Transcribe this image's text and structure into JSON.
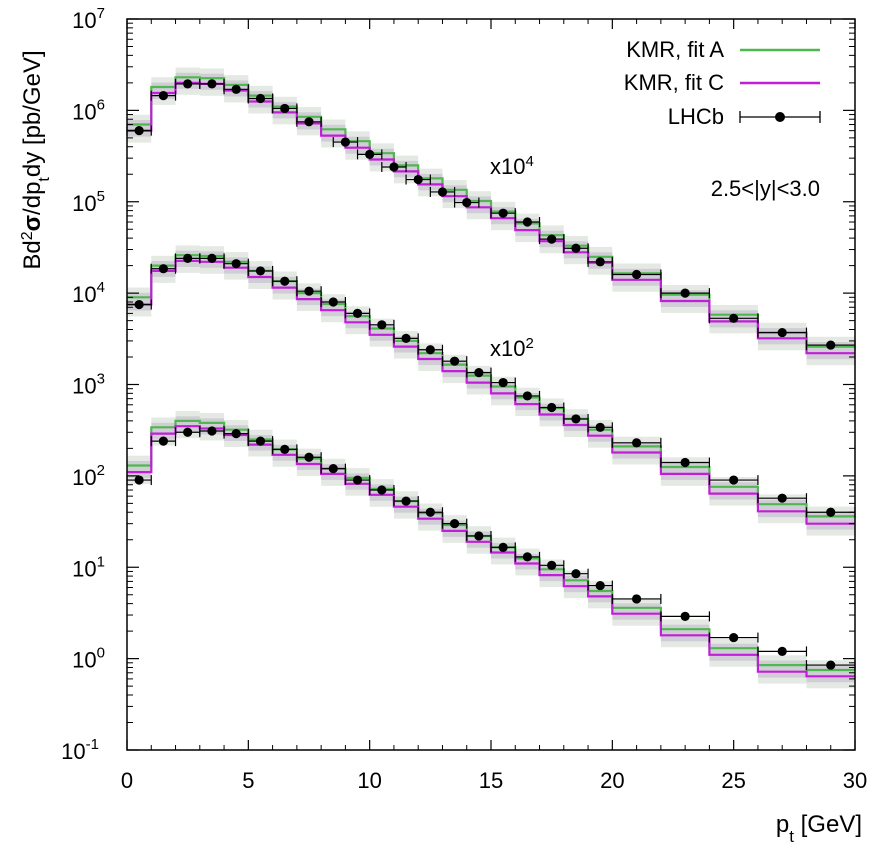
{
  "chart_data": {
    "type": "line",
    "step": true,
    "title": "",
    "xlabel": "p_t [GeV]",
    "xlabel_parts": {
      "main": "p",
      "sub": "t",
      "rest": " [GeV]"
    },
    "ylabel": "Bd²σ/dp_t dy [pb/GeV]",
    "ylabel_parts": {
      "a": "Bd",
      "sup": "2",
      "sigma": "σ",
      "b": "/dp",
      "sub": "t",
      "c": "dy [pb/GeV]"
    },
    "xlim": [
      0,
      30
    ],
    "ylim_log10": [
      -1,
      7
    ],
    "yscale": "log",
    "x_ticks": [
      "0",
      "5",
      "10",
      "15",
      "20",
      "25",
      "30"
    ],
    "y_ticks": [
      {
        "base": "10",
        "exp": "-1"
      },
      {
        "base": "10",
        "exp": "0"
      },
      {
        "base": "10",
        "exp": "1"
      },
      {
        "base": "10",
        "exp": "2"
      },
      {
        "base": "10",
        "exp": "3"
      },
      {
        "base": "10",
        "exp": "4"
      },
      {
        "base": "10",
        "exp": "5"
      },
      {
        "base": "10",
        "exp": "6"
      },
      {
        "base": "10",
        "exp": "7"
      }
    ],
    "region_label": "2.5<|y|<3.0",
    "scale_labels": [
      {
        "base": "x10",
        "exp": "4",
        "at_x": 14.8,
        "at_y": 160000
      },
      {
        "base": "x10",
        "exp": "2",
        "at_x": 14.8,
        "at_y": 1800
      }
    ],
    "legend": [
      {
        "name": "KMR, fit A",
        "color": "#4db84d",
        "kind": "line"
      },
      {
        "name": "KMR, fit C",
        "color": "#bf1fd6",
        "kind": "line"
      },
      {
        "name": "LHCb",
        "color": "#000000",
        "kind": "points"
      }
    ],
    "legend_position": "top-right",
    "bins": [
      [
        0,
        1
      ],
      [
        1,
        2
      ],
      [
        2,
        3
      ],
      [
        3,
        4
      ],
      [
        4,
        5
      ],
      [
        5,
        6
      ],
      [
        6,
        7
      ],
      [
        7,
        8
      ],
      [
        8,
        9
      ],
      [
        9,
        10
      ],
      [
        10,
        11
      ],
      [
        11,
        12
      ],
      [
        12,
        13
      ],
      [
        13,
        14
      ],
      [
        14,
        15
      ],
      [
        15,
        16
      ],
      [
        16,
        17
      ],
      [
        17,
        18
      ],
      [
        18,
        19
      ],
      [
        19,
        20
      ],
      [
        20,
        22
      ],
      [
        22,
        24
      ],
      [
        24,
        26
      ],
      [
        26,
        28
      ],
      [
        28,
        30
      ]
    ],
    "groups": [
      {
        "multiplier": 10000,
        "fitA": [
          700000,
          1800000,
          2300000,
          2250000,
          1900000,
          1450000,
          1100000,
          850000,
          620000,
          460000,
          340000,
          250000,
          180000,
          135000,
          102000,
          78000,
          58000,
          43000,
          33000,
          25000,
          16500,
          9600,
          5800,
          3700,
          2600
        ],
        "fitC": [
          600000,
          1550000,
          2000000,
          1950000,
          1650000,
          1250000,
          950000,
          720000,
          530000,
          390000,
          290000,
          215000,
          155000,
          115000,
          87000,
          66000,
          49000,
          37000,
          28000,
          21500,
          14000,
          8200,
          4900,
          3200,
          2200
        ],
        "data": [
          600000,
          1450000,
          1950000,
          1950000,
          1700000,
          1350000,
          1050000,
          750000,
          450000,
          330000,
          240000,
          175000,
          128000,
          98000,
          75000,
          60000,
          39000,
          31000,
          22000,
          16000,
          10000,
          5300,
          3700,
          2700
        ],
        "data_x": [
          0.5,
          1.5,
          2.5,
          3.5,
          4.5,
          5.5,
          6.5,
          7.5,
          9.0,
          10.0,
          11.0,
          12.0,
          13.0,
          14.0,
          15.5,
          16.5,
          17.5,
          18.5,
          19.5,
          21.0,
          23.0,
          25.0,
          27.0,
          29.0
        ]
      },
      {
        "multiplier": 100,
        "fitA": [
          9000,
          20000,
          26000,
          25500,
          22000,
          17500,
          13500,
          10000,
          7600,
          5600,
          4100,
          3000,
          2200,
          1650,
          1250,
          950,
          720,
          550,
          420,
          320,
          210,
          125,
          76,
          49,
          36
        ],
        "fitC": [
          7500,
          17500,
          22500,
          22000,
          19000,
          15000,
          11500,
          8600,
          6500,
          4800,
          3500,
          2600,
          1900,
          1400,
          1050,
          800,
          610,
          470,
          360,
          275,
          180,
          105,
          64,
          41,
          30
        ],
        "data": [
          7500,
          18500,
          24000,
          24000,
          21000,
          17500,
          13500,
          10500,
          8000,
          6000,
          4500,
          3200,
          2400,
          1800,
          1350,
          1050,
          750,
          560,
          420,
          340,
          230,
          140,
          90,
          57,
          40
        ],
        "data_x": [
          0.5,
          1.5,
          2.5,
          3.5,
          4.5,
          5.5,
          6.5,
          7.5,
          8.5,
          9.5,
          10.5,
          11.5,
          12.5,
          13.5,
          14.5,
          15.5,
          16.5,
          17.5,
          18.5,
          19.5,
          21.0,
          23.0,
          25.0,
          27.0,
          29.0
        ]
      },
      {
        "multiplier": 1,
        "fitA": [
          130,
          340,
          400,
          380,
          320,
          250,
          195,
          155,
          120,
          95,
          72,
          53,
          39,
          29,
          22,
          16.5,
          12.5,
          9.5,
          7.2,
          5.5,
          3.6,
          2.1,
          1.3,
          0.85,
          0.75
        ],
        "fitC": [
          110,
          290,
          350,
          330,
          280,
          220,
          170,
          135,
          105,
          82,
          62,
          46,
          34,
          25,
          19,
          14.5,
          11,
          8.2,
          6.2,
          4.8,
          3.1,
          1.8,
          1.1,
          0.72,
          0.64
        ],
        "data": [
          90,
          240,
          300,
          310,
          290,
          240,
          195,
          160,
          120,
          90,
          70,
          53,
          40,
          30,
          22,
          16.5,
          13,
          10.5,
          8.5,
          6.3,
          4.5,
          2.9,
          1.7,
          1.2,
          0.85
        ],
        "data_x": [
          0.5,
          1.5,
          2.5,
          3.5,
          4.5,
          5.5,
          6.5,
          7.5,
          8.5,
          9.5,
          10.5,
          11.5,
          12.5,
          13.5,
          14.5,
          15.5,
          16.5,
          17.5,
          18.5,
          19.5,
          21.0,
          23.0,
          25.0,
          27.0,
          29.0
        ]
      }
    ]
  }
}
